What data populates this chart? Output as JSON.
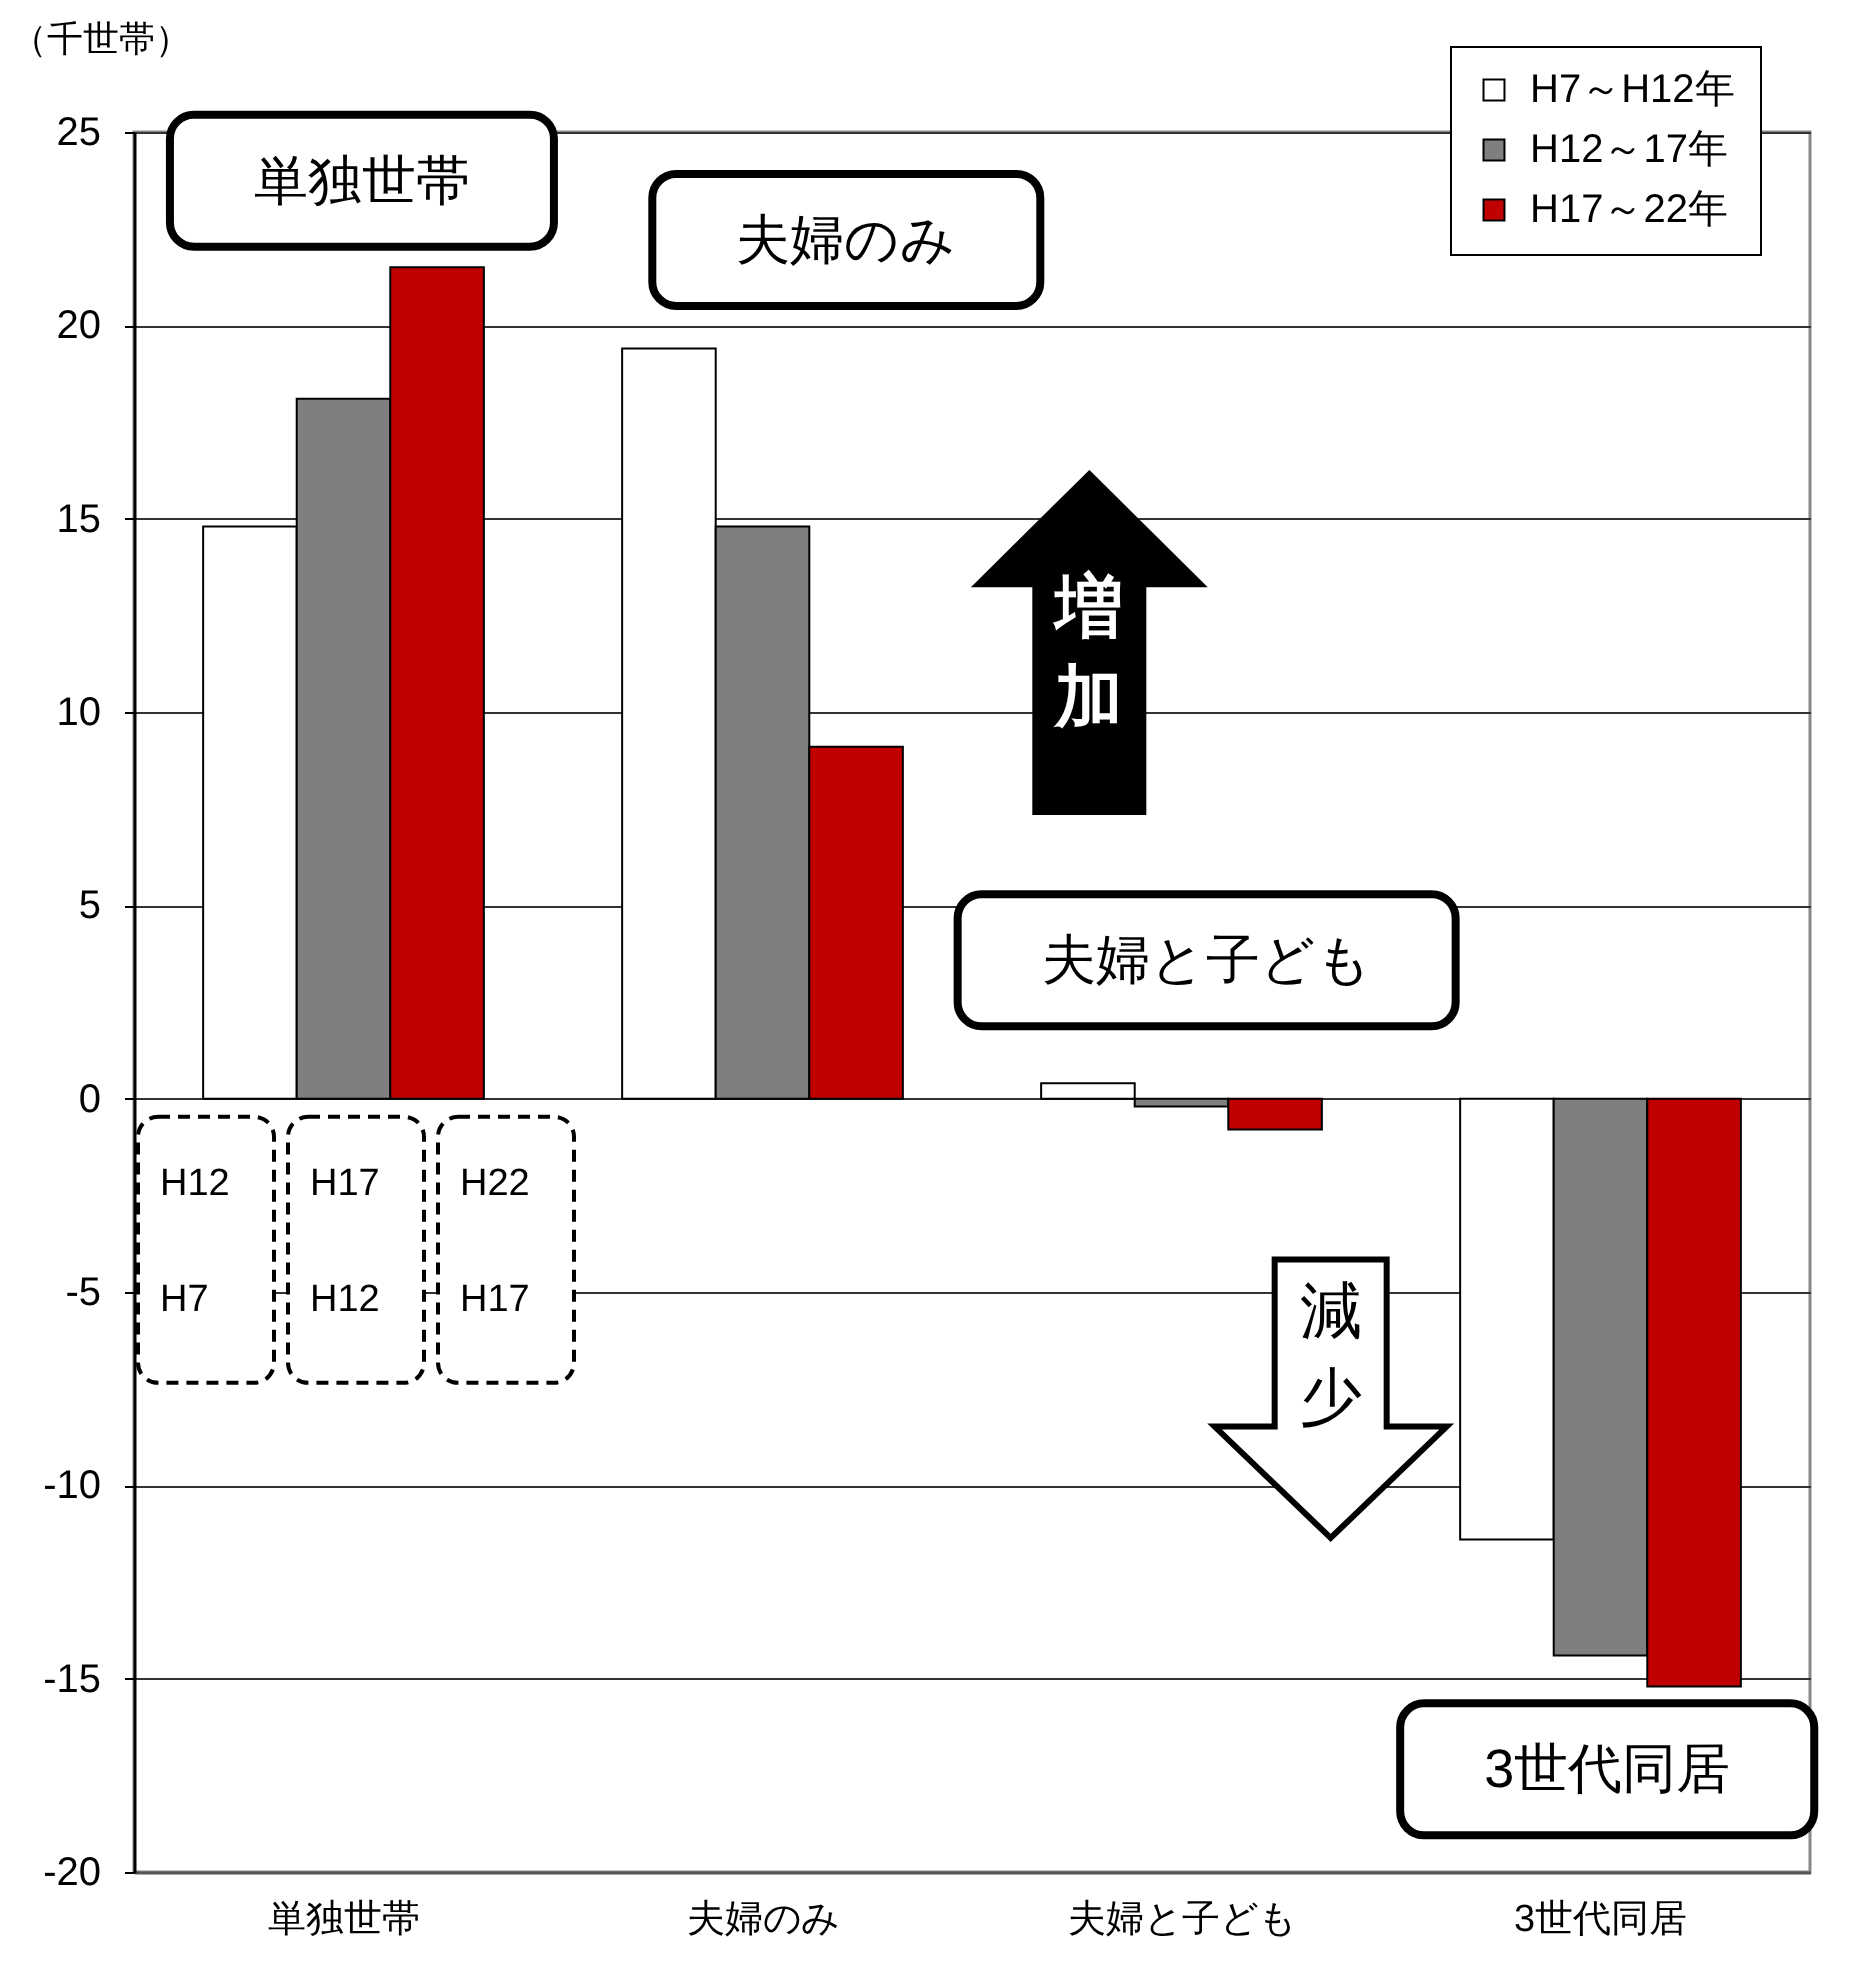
{
  "chart_data": {
    "type": "bar",
    "ylabel": "（千世帯）",
    "categories": [
      "単独世帯",
      "夫婦のみ",
      "夫婦と子ども",
      "3世代同居"
    ],
    "series": [
      {
        "name": "H7～H12年",
        "color": "#ffffff",
        "values": [
          14.8,
          19.4,
          0.4,
          -11.4
        ]
      },
      {
        "name": "H12～17年",
        "color": "#7f7f7f",
        "values": [
          18.1,
          14.8,
          -0.2,
          -14.4
        ]
      },
      {
        "name": "H17～22年",
        "color": "#c00000",
        "values": [
          21.5,
          9.1,
          -0.8,
          -15.2
        ]
      }
    ],
    "ylim": [
      -20,
      25
    ],
    "yticks": [
      -20,
      -15,
      -10,
      -5,
      0,
      5,
      10,
      15,
      20,
      25
    ],
    "grid": "y",
    "legend": "top right",
    "annotations": [
      "単独世帯",
      "夫婦のみ",
      "夫婦と子ども",
      "3世代同居",
      "増加",
      "減少",
      "H12",
      "H7",
      "H17",
      "H12",
      "H22",
      "H17"
    ]
  }
}
